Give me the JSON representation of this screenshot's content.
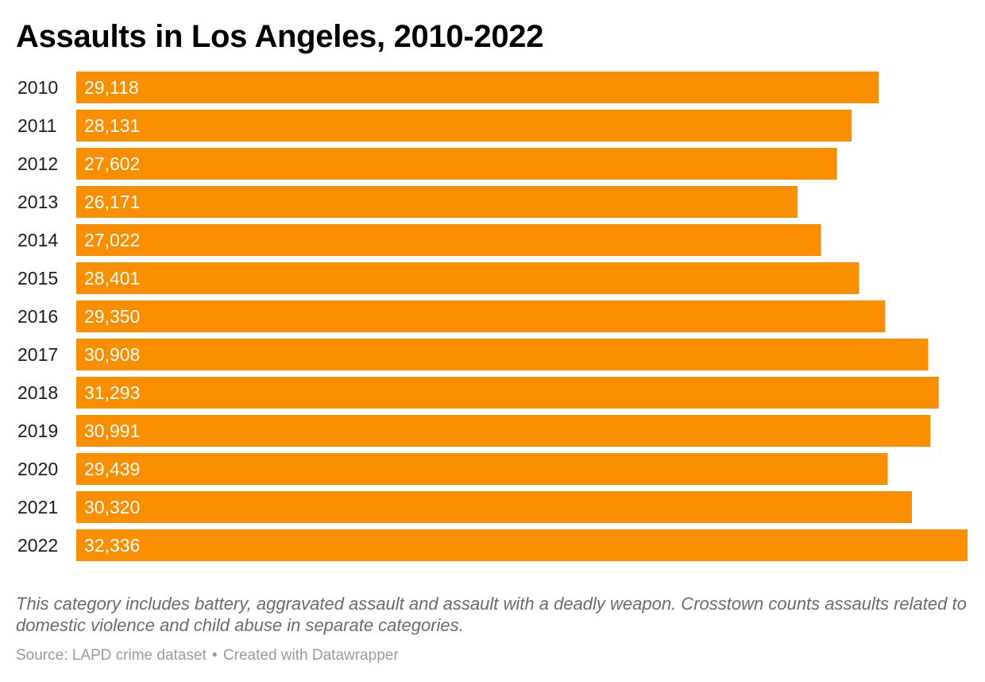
{
  "chart_data": {
    "type": "bar",
    "orientation": "horizontal",
    "title": "Assaults in Los Angeles, 2010-2022",
    "categories": [
      "2010",
      "2011",
      "2012",
      "2013",
      "2014",
      "2015",
      "2016",
      "2017",
      "2018",
      "2019",
      "2020",
      "2021",
      "2022"
    ],
    "values": [
      29118,
      28131,
      27602,
      26171,
      27022,
      28401,
      29350,
      30908,
      31293,
      30991,
      29439,
      30320,
      32336
    ],
    "value_labels": [
      "29,118",
      "28,131",
      "27,602",
      "26,171",
      "27,022",
      "28,401",
      "29,350",
      "30,908",
      "31,293",
      "30,991",
      "29,439",
      "30,320",
      "32,336"
    ],
    "xlim": [
      0,
      32336
    ],
    "grid": false,
    "legend": "none",
    "bar_color": "#f98f00"
  },
  "notes": "This category includes battery, aggravated assault and assault with a deadly weapon. Crosstown counts assaults related to domestic violence and child abuse in separate categories.",
  "footer": {
    "source": "Source: LAPD crime dataset",
    "separator": "•",
    "credit": "Created with Datawrapper"
  }
}
